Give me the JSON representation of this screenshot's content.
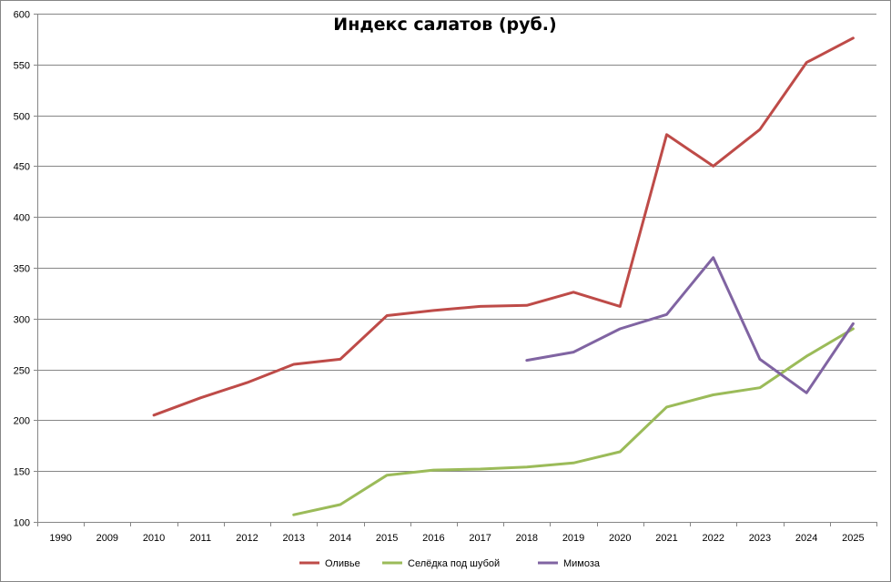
{
  "chart_data": {
    "type": "line",
    "title": "Индекс салатов (руб.)",
    "xlabel": "",
    "ylabel": "",
    "categories": [
      "1990",
      "2009",
      "2010",
      "2011",
      "2012",
      "2013",
      "2014",
      "2015",
      "2016",
      "2017",
      "2018",
      "2019",
      "2020",
      "2021",
      "2022",
      "2023",
      "2024",
      "2025"
    ],
    "ylim": [
      100,
      600
    ],
    "yticks": [
      100,
      150,
      200,
      250,
      300,
      350,
      400,
      450,
      500,
      550,
      600
    ],
    "grid": true,
    "legend_position": "bottom",
    "series": [
      {
        "name": "Оливье",
        "color": "#be4b48",
        "values": [
          null,
          null,
          205,
          222,
          237,
          255,
          260,
          303,
          308,
          312,
          313,
          326,
          312,
          481,
          450,
          486,
          552,
          576
        ]
      },
      {
        "name": "Селёдка под шубой",
        "color": "#9bbb59",
        "values": [
          null,
          null,
          null,
          null,
          null,
          107,
          117,
          146,
          151,
          152,
          154,
          158,
          169,
          213,
          225,
          232,
          263,
          290
        ]
      },
      {
        "name": "Мимоза",
        "color": "#8064a2",
        "values": [
          null,
          null,
          null,
          null,
          null,
          null,
          null,
          null,
          null,
          null,
          259,
          267,
          290,
          304,
          360,
          260,
          227,
          295
        ]
      }
    ]
  }
}
